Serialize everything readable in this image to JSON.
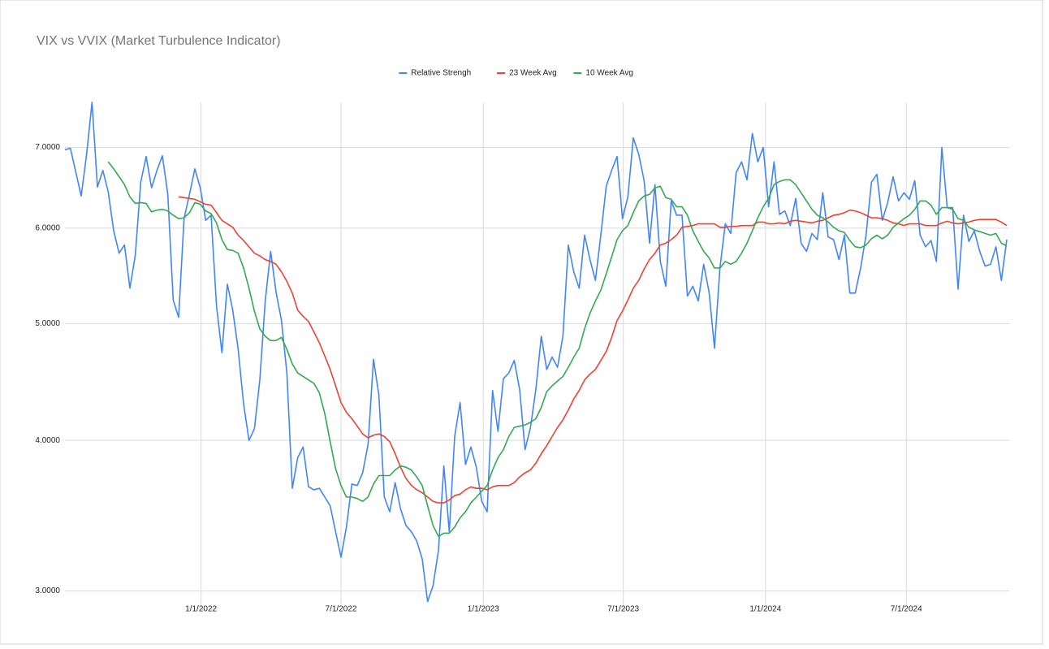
{
  "chart_data": {
    "type": "line",
    "title": "VIX vs VVIX (Market Turbulence Indicator)",
    "legend": "top",
    "grid": true,
    "yscale": "log",
    "ylim": [
      2.92,
      7.63
    ],
    "yticks": [
      {
        "value": 3,
        "label": "3.0000"
      },
      {
        "value": 4,
        "label": "4.0000"
      },
      {
        "value": 5,
        "label": "5.0000"
      },
      {
        "value": 6,
        "label": "6.0000"
      },
      {
        "value": 7,
        "label": "7.0000"
      }
    ],
    "xlim": [
      "2021-07-09",
      "2024-11-08"
    ],
    "xticks": [
      {
        "value": "2022-01-01",
        "label": "1/1/2022"
      },
      {
        "value": "2022-07-01",
        "label": "7/1/2022"
      },
      {
        "value": "2023-01-01",
        "label": "1/1/2023"
      },
      {
        "value": "2023-07-01",
        "label": "7/1/2023"
      },
      {
        "value": "2024-01-01",
        "label": "1/1/2024"
      },
      {
        "value": "2024-07-01",
        "label": "7/1/2024"
      }
    ],
    "x": [
      "2021-07-09",
      "2021-07-16",
      "2021-07-23",
      "2021-07-30",
      "2021-08-06",
      "2021-08-13",
      "2021-08-20",
      "2021-08-27",
      "2021-09-03",
      "2021-09-10",
      "2021-09-17",
      "2021-09-24",
      "2021-10-01",
      "2021-10-08",
      "2021-10-15",
      "2021-10-22",
      "2021-10-29",
      "2021-11-05",
      "2021-11-12",
      "2021-11-19",
      "2021-11-26",
      "2021-12-03",
      "2021-12-10",
      "2021-12-17",
      "2021-12-24",
      "2021-12-31",
      "2022-01-07",
      "2022-01-14",
      "2022-01-21",
      "2022-01-28",
      "2022-02-04",
      "2022-02-11",
      "2022-02-18",
      "2022-02-25",
      "2022-03-04",
      "2022-03-11",
      "2022-03-18",
      "2022-03-25",
      "2022-04-01",
      "2022-04-08",
      "2022-04-15",
      "2022-04-22",
      "2022-04-29",
      "2022-05-06",
      "2022-05-13",
      "2022-05-20",
      "2022-05-27",
      "2022-06-03",
      "2022-06-10",
      "2022-06-17",
      "2022-06-24",
      "2022-07-01",
      "2022-07-08",
      "2022-07-15",
      "2022-07-22",
      "2022-07-29",
      "2022-08-05",
      "2022-08-12",
      "2022-08-19",
      "2022-08-26",
      "2022-09-02",
      "2022-09-09",
      "2022-09-16",
      "2022-09-23",
      "2022-09-30",
      "2022-10-07",
      "2022-10-14",
      "2022-10-21",
      "2022-10-28",
      "2022-11-04",
      "2022-11-11",
      "2022-11-18",
      "2022-11-25",
      "2022-12-02",
      "2022-12-09",
      "2022-12-16",
      "2022-12-23",
      "2022-12-30",
      "2023-01-06",
      "2023-01-13",
      "2023-01-20",
      "2023-01-27",
      "2023-02-03",
      "2023-02-10",
      "2023-02-17",
      "2023-02-24",
      "2023-03-03",
      "2023-03-10",
      "2023-03-17",
      "2023-03-24",
      "2023-03-31",
      "2023-04-07",
      "2023-04-14",
      "2023-04-21",
      "2023-04-28",
      "2023-05-05",
      "2023-05-12",
      "2023-05-19",
      "2023-05-26",
      "2023-06-02",
      "2023-06-09",
      "2023-06-16",
      "2023-06-23",
      "2023-06-30",
      "2023-07-07",
      "2023-07-14",
      "2023-07-21",
      "2023-07-28",
      "2023-08-04",
      "2023-08-11",
      "2023-08-18",
      "2023-08-25",
      "2023-09-01",
      "2023-09-08",
      "2023-09-15",
      "2023-09-22",
      "2023-09-29",
      "2023-10-06",
      "2023-10-13",
      "2023-10-20",
      "2023-10-27",
      "2023-11-03",
      "2023-11-10",
      "2023-11-17",
      "2023-11-24",
      "2023-12-01",
      "2023-12-08",
      "2023-12-15",
      "2023-12-22",
      "2023-12-29",
      "2024-01-05",
      "2024-01-12",
      "2024-01-19",
      "2024-01-26",
      "2024-02-02",
      "2024-02-09",
      "2024-02-16",
      "2024-02-23",
      "2024-03-01",
      "2024-03-08",
      "2024-03-15",
      "2024-03-22",
      "2024-03-29",
      "2024-04-05",
      "2024-04-12",
      "2024-04-19",
      "2024-04-26",
      "2024-05-03",
      "2024-05-10",
      "2024-05-17",
      "2024-05-24",
      "2024-05-31",
      "2024-06-07",
      "2024-06-14",
      "2024-06-21",
      "2024-06-28",
      "2024-07-05",
      "2024-07-12",
      "2024-07-19",
      "2024-07-26",
      "2024-08-02",
      "2024-08-09",
      "2024-08-16",
      "2024-08-23",
      "2024-08-30",
      "2024-09-06",
      "2024-09-13",
      "2024-09-20",
      "2024-09-27",
      "2024-10-04",
      "2024-10-11",
      "2024-10-18",
      "2024-10-25",
      "2024-11-01",
      "2024-11-08"
    ],
    "series": [
      {
        "name": "Relative Strengh",
        "color": "#4285f4",
        "values": [
          6.97,
          6.99,
          6.68,
          6.38,
          6.91,
          7.63,
          6.49,
          6.7,
          6.43,
          5.97,
          5.72,
          5.81,
          5.35,
          5.7,
          6.55,
          6.88,
          6.48,
          6.7,
          6.89,
          6.4,
          5.23,
          5.06,
          6.11,
          6.4,
          6.72,
          6.48,
          6.09,
          6.15,
          5.17,
          4.73,
          5.39,
          5.13,
          4.76,
          4.29,
          4.0,
          4.09,
          4.49,
          5.22,
          5.74,
          5.31,
          5.03,
          4.55,
          3.65,
          3.87,
          3.95,
          3.66,
          3.64,
          3.65,
          3.59,
          3.53,
          3.36,
          3.2,
          3.39,
          3.68,
          3.67,
          3.76,
          3.97,
          4.67,
          4.36,
          3.59,
          3.49,
          3.69,
          3.51,
          3.4,
          3.36,
          3.3,
          3.19,
          2.94,
          3.03,
          3.24,
          3.81,
          3.36,
          4.03,
          4.3,
          3.82,
          3.95,
          3.8,
          3.56,
          3.49,
          4.4,
          4.07,
          4.5,
          4.55,
          4.66,
          4.41,
          3.93,
          4.1,
          4.41,
          4.88,
          4.58,
          4.69,
          4.6,
          4.88,
          5.81,
          5.52,
          5.35,
          5.92,
          5.65,
          5.43,
          5.92,
          6.5,
          6.7,
          6.88,
          6.11,
          6.37,
          7.13,
          6.91,
          6.57,
          5.83,
          6.52,
          5.63,
          5.37,
          6.32,
          6.15,
          6.15,
          5.27,
          5.37,
          5.22,
          5.6,
          5.31,
          4.77,
          5.56,
          6.05,
          5.94,
          6.67,
          6.81,
          6.58,
          7.19,
          6.81,
          7.0,
          6.25,
          6.81,
          6.16,
          6.2,
          6.03,
          6.35,
          5.83,
          5.74,
          5.94,
          5.87,
          6.42,
          5.9,
          5.87,
          5.65,
          5.92,
          5.3,
          5.3,
          5.56,
          5.92,
          6.55,
          6.65,
          6.09,
          6.3,
          6.62,
          6.32,
          6.42,
          6.34,
          6.57,
          5.92,
          5.79,
          5.86,
          5.63,
          7.0,
          6.24,
          6.24,
          5.34,
          6.15,
          5.85,
          5.97,
          5.74,
          5.58,
          5.6,
          5.79,
          5.43,
          5.87
        ]
      },
      {
        "name": "23 Week Avg",
        "color": "#ea4335",
        "values": [
          null,
          null,
          null,
          null,
          null,
          null,
          null,
          null,
          null,
          null,
          null,
          null,
          null,
          null,
          null,
          null,
          null,
          null,
          null,
          null,
          null,
          6.37,
          6.36,
          6.35,
          6.34,
          6.31,
          6.28,
          6.27,
          6.18,
          6.09,
          6.05,
          6.01,
          5.92,
          5.86,
          5.79,
          5.72,
          5.69,
          5.65,
          5.63,
          5.6,
          5.52,
          5.42,
          5.3,
          5.13,
          5.07,
          5.02,
          4.92,
          4.82,
          4.7,
          4.58,
          4.44,
          4.3,
          4.22,
          4.17,
          4.11,
          4.05,
          4.02,
          4.04,
          4.05,
          4.03,
          3.99,
          3.9,
          3.8,
          3.72,
          3.67,
          3.64,
          3.62,
          3.59,
          3.56,
          3.55,
          3.55,
          3.57,
          3.6,
          3.61,
          3.64,
          3.66,
          3.65,
          3.65,
          3.64,
          3.66,
          3.67,
          3.67,
          3.67,
          3.69,
          3.73,
          3.76,
          3.78,
          3.83,
          3.9,
          3.96,
          4.03,
          4.1,
          4.16,
          4.24,
          4.33,
          4.4,
          4.49,
          4.54,
          4.58,
          4.66,
          4.74,
          4.87,
          5.03,
          5.12,
          5.23,
          5.35,
          5.43,
          5.55,
          5.65,
          5.72,
          5.81,
          5.83,
          5.87,
          5.92,
          6.01,
          6.02,
          6.03,
          6.05,
          6.05,
          6.05,
          6.05,
          6.01,
          6.01,
          6.02,
          6.02,
          6.03,
          6.03,
          6.03,
          6.07,
          6.07,
          6.05,
          6.05,
          6.06,
          6.05,
          6.08,
          6.09,
          6.08,
          6.07,
          6.06,
          6.08,
          6.09,
          6.12,
          6.15,
          6.16,
          6.18,
          6.21,
          6.2,
          6.18,
          6.15,
          6.12,
          6.12,
          6.11,
          6.09,
          6.06,
          6.05,
          6.03,
          6.05,
          6.05,
          6.05,
          6.03,
          6.03,
          6.03,
          6.06,
          6.08,
          6.06,
          6.05,
          6.06,
          6.07,
          6.09,
          6.1,
          6.1,
          6.1,
          6.1,
          6.07,
          6.03
        ]
      },
      {
        "name": "10 Week Avg",
        "color": "#34a853",
        "values": [
          null,
          null,
          null,
          null,
          null,
          null,
          null,
          null,
          6.81,
          6.72,
          6.62,
          6.52,
          6.37,
          6.29,
          6.3,
          6.29,
          6.19,
          6.21,
          6.22,
          6.2,
          6.15,
          6.11,
          6.12,
          6.18,
          6.3,
          6.28,
          6.2,
          6.17,
          6.06,
          5.87,
          5.76,
          5.75,
          5.72,
          5.56,
          5.35,
          5.12,
          4.95,
          4.88,
          4.84,
          4.84,
          4.87,
          4.76,
          4.63,
          4.55,
          4.52,
          4.49,
          4.46,
          4.38,
          4.21,
          3.99,
          3.79,
          3.67,
          3.59,
          3.59,
          3.58,
          3.56,
          3.59,
          3.68,
          3.74,
          3.74,
          3.74,
          3.78,
          3.81,
          3.8,
          3.78,
          3.73,
          3.67,
          3.53,
          3.4,
          3.33,
          3.35,
          3.35,
          3.39,
          3.45,
          3.49,
          3.55,
          3.59,
          3.63,
          3.67,
          3.78,
          3.87,
          3.93,
          4.03,
          4.1,
          4.11,
          4.12,
          4.14,
          4.17,
          4.26,
          4.39,
          4.44,
          4.48,
          4.52,
          4.6,
          4.69,
          4.77,
          4.95,
          5.1,
          5.22,
          5.33,
          5.5,
          5.68,
          5.87,
          5.97,
          6.03,
          6.18,
          6.32,
          6.38,
          6.4,
          6.48,
          6.5,
          6.36,
          6.34,
          6.25,
          6.25,
          6.15,
          5.97,
          5.85,
          5.74,
          5.67,
          5.56,
          5.56,
          5.63,
          5.6,
          5.63,
          5.72,
          5.83,
          5.97,
          6.12,
          6.25,
          6.35,
          6.52,
          6.56,
          6.58,
          6.58,
          6.52,
          6.42,
          6.32,
          6.22,
          6.15,
          6.12,
          6.07,
          6.01,
          5.97,
          5.95,
          5.86,
          5.79,
          5.78,
          5.81,
          5.88,
          5.92,
          5.88,
          5.92,
          6.01,
          6.06,
          6.11,
          6.15,
          6.22,
          6.32,
          6.32,
          6.27,
          6.16,
          6.24,
          6.24,
          6.22,
          6.11,
          6.09,
          6.01,
          5.98,
          5.96,
          5.94,
          5.92,
          5.94,
          5.83,
          5.8
        ]
      }
    ]
  }
}
